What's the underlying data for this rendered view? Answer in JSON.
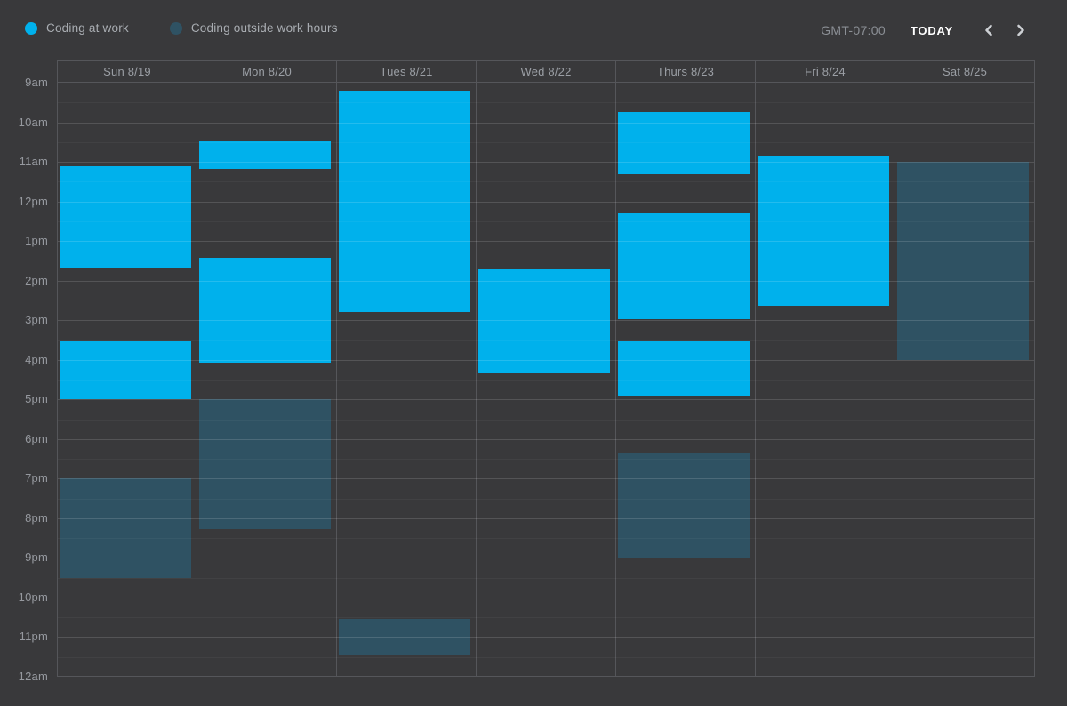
{
  "legend": {
    "items": [
      {
        "type": "work",
        "label": "Coding at work",
        "color": "#00B1EC"
      },
      {
        "type": "outside",
        "label": "Coding outside work hours",
        "color": "#2F5263"
      }
    ]
  },
  "toolbar": {
    "timezone": "GMT-07:00",
    "today_label": "TODAY"
  },
  "calendar": {
    "hours_start": 9,
    "hours_end": 24,
    "time_labels": [
      "9am",
      "10am",
      "11am",
      "12pm",
      "1pm",
      "2pm",
      "3pm",
      "4pm",
      "5pm",
      "6pm",
      "7pm",
      "8pm",
      "9pm",
      "10pm",
      "11pm",
      "12am"
    ],
    "days": [
      {
        "label": "Sun 8/19",
        "events": [
          {
            "type": "work",
            "start": 11.1,
            "end": 13.67
          },
          {
            "type": "work",
            "start": 15.5,
            "end": 17.0
          },
          {
            "type": "outside",
            "start": 19.0,
            "end": 21.5
          }
        ]
      },
      {
        "label": "Mon 8/20",
        "events": [
          {
            "type": "work",
            "start": 10.47,
            "end": 11.17
          },
          {
            "type": "work",
            "start": 13.42,
            "end": 16.08
          },
          {
            "type": "outside",
            "start": 17.0,
            "end": 20.28
          }
        ]
      },
      {
        "label": "Tues 8/21",
        "events": [
          {
            "type": "work",
            "start": 9.2,
            "end": 14.8
          },
          {
            "type": "outside",
            "start": 22.55,
            "end": 23.47
          }
        ]
      },
      {
        "label": "Wed 8/22",
        "events": [
          {
            "type": "work",
            "start": 13.72,
            "end": 16.35
          }
        ]
      },
      {
        "label": "Thurs 8/23",
        "events": [
          {
            "type": "work",
            "start": 9.73,
            "end": 11.32
          },
          {
            "type": "work",
            "start": 12.27,
            "end": 14.98
          },
          {
            "type": "work",
            "start": 15.5,
            "end": 16.9
          },
          {
            "type": "outside",
            "start": 18.35,
            "end": 21.0
          }
        ]
      },
      {
        "label": "Fri 8/24",
        "events": [
          {
            "type": "work",
            "start": 10.87,
            "end": 14.63
          }
        ]
      },
      {
        "label": "Sat 8/25",
        "events": [
          {
            "type": "outside",
            "start": 11.0,
            "end": 16.0
          }
        ]
      }
    ]
  }
}
